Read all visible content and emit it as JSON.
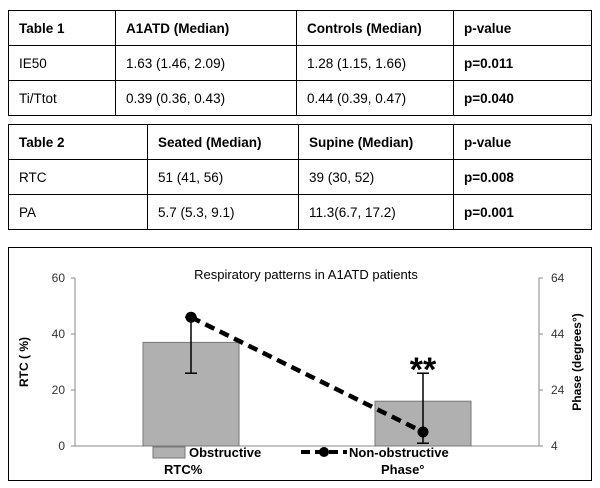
{
  "table1": {
    "headers": [
      "Table 1",
      "A1ATD (Median)",
      "Controls (Median)",
      "p-value"
    ],
    "rows": [
      [
        "IE50",
        "1.63 (1.46, 2.09)",
        "1.28 (1.15, 1.66)",
        "p=0.011"
      ],
      [
        "Ti/Ttot",
        "0.39 (0.36, 0.43)",
        "0.44 (0.39, 0.47)",
        "p=0.040"
      ]
    ]
  },
  "table2": {
    "headers": [
      "Table 2",
      "Seated (Median)",
      "Supine (Median)",
      "p-value"
    ],
    "rows": [
      [
        "RTC",
        "51 (41, 56)",
        "39 (30, 52)",
        "p=0.008"
      ],
      [
        "PA",
        "5.7 (5.3, 9.1)",
        "11.3(6.7, 17.2)",
        "p=0.001"
      ]
    ]
  },
  "chart_data": {
    "type": "bar",
    "title": "Respiratory patterns in A1ATD patients",
    "ylabel": "RTC ( %)",
    "y2label": "Phase (degrees°)",
    "ylim": [
      0,
      60
    ],
    "y2lim": [
      4,
      64
    ],
    "yticks": [
      0,
      20,
      40,
      60
    ],
    "y2ticks": [
      4,
      24,
      44,
      64
    ],
    "categories": [
      "Obstructive",
      "Non-obstructive"
    ],
    "series": [
      {
        "name": "RTC%",
        "kind": "bar",
        "axis": "left",
        "values": [
          37,
          16
        ],
        "error_low": [
          26,
          1
        ],
        "error_high": [
          46,
          26
        ],
        "color": "#b0b0b0"
      },
      {
        "name": "Phase°",
        "kind": "line",
        "axis": "right",
        "style": "dashed",
        "values": [
          50,
          9
        ],
        "color": "#000000"
      }
    ],
    "annotation": "**",
    "legend_position": "bottom"
  }
}
